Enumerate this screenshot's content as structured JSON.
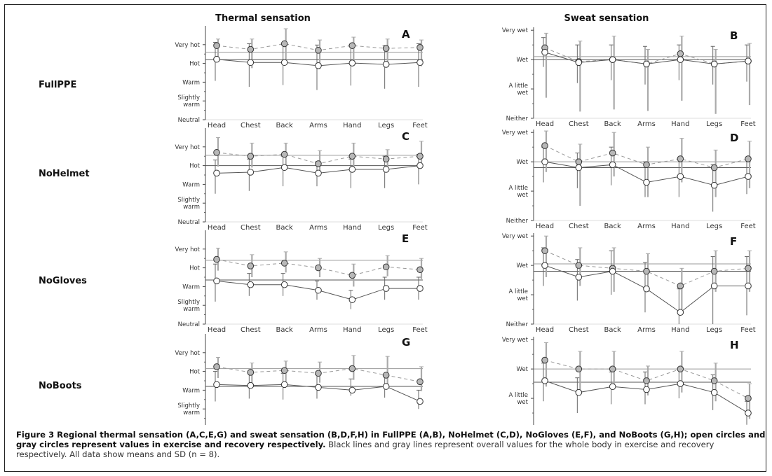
{
  "colors": {
    "exercise_marker": "#ffffff",
    "recovery_marker": "#b8b8b8",
    "exercise_line": "#555555",
    "recovery_line": "#999999",
    "errbar_exercise": "#666666",
    "errbar_recovery": "#aaaaaa",
    "axis": "#444444"
  },
  "columns": [
    "Thermal sensation",
    "Sweat sensation"
  ],
  "conditions": [
    "FullPPE",
    "NoHelmet",
    "NoGloves",
    "NoBoots"
  ],
  "caption": {
    "bold": "Figure 3 Regional thermal sensation (A,C,E,G) and sweat sensation (B,D,F,H) in FullPPE (A,B), NoHelmet (C,D), NoGloves (E,F), and NoBoots (G,H); open circles and gray circles represent values in exercise and recovery respectively.",
    "rest": " Black lines and gray lines represent overall values for the whole body in exercise and recovery respectively. All data show means and SD (n = 8)."
  },
  "chart_data": [
    {
      "panel": "A",
      "type": "line",
      "condition": "FullPPE",
      "categories": [
        "Head",
        "Chest",
        "Back",
        "Arms",
        "Hand",
        "Legs",
        "Feet"
      ],
      "yticks": [
        "Neutral",
        "Slightly warm",
        "Warm",
        "Hot",
        "Very hot"
      ],
      "ylim": [
        0,
        5
      ],
      "series": [
        {
          "values": [
            3.22,
            3.05,
            3.05,
            2.88,
            3.02,
            2.95,
            3.05
          ],
          "sd_up": [
            0.9,
            1.0,
            1.0,
            1.1,
            0.95,
            1.0,
            1.0
          ],
          "sd_down": [
            1.15,
            1.3,
            1.2,
            1.3,
            1.2,
            1.3,
            1.3
          ]
        },
        {
          "values": [
            3.95,
            3.75,
            4.05,
            3.7,
            3.95,
            3.8,
            3.85
          ],
          "sd_up": [
            0.35,
            0.55,
            0.8,
            0.55,
            0.45,
            0.5,
            0.4
          ],
          "sd_down": [
            0.85,
            1.0,
            1.1,
            1.0,
            0.9,
            0.95,
            1.0
          ]
        }
      ],
      "overall": [
        3.2,
        3.6
      ]
    },
    {
      "panel": "B",
      "type": "line",
      "condition": "FullPPE",
      "categories": [
        "Head",
        "Chest",
        "Back",
        "Arms",
        "Hand",
        "Legs",
        "Feet"
      ],
      "yticks": [
        "Neither",
        "A little wet",
        "Wet",
        "Very wet"
      ],
      "ylim": [
        0,
        3.1
      ],
      "series": [
        {
          "values": [
            2.25,
            1.9,
            2.0,
            1.85,
            2.0,
            1.85,
            1.95
          ],
          "sd_up": [
            0.5,
            0.6,
            0.5,
            0.6,
            0.5,
            0.6,
            0.55
          ],
          "sd_down": [
            0.5,
            0.7,
            0.7,
            0.7,
            0.7,
            0.7,
            0.7
          ]
        },
        {
          "values": [
            2.4,
            1.93,
            2.0,
            1.85,
            2.2,
            1.85,
            1.95
          ],
          "sd_up": [
            0.5,
            0.7,
            0.8,
            0.5,
            0.6,
            0.5,
            0.6
          ],
          "sd_down": [
            1.7,
            1.7,
            1.7,
            1.6,
            1.6,
            1.7,
            1.5
          ]
        }
      ],
      "overall": [
        2.0,
        2.1
      ]
    },
    {
      "panel": "C",
      "type": "line",
      "condition": "NoHelmet",
      "categories": [
        "Head",
        "Chest",
        "Back",
        "Arms",
        "Hand",
        "Legs",
        "Feet"
      ],
      "yticks": [
        "Neutral",
        "Slightly warm",
        "Warm",
        "Hot",
        "Very hot"
      ],
      "ylim": [
        0,
        5
      ],
      "series": [
        {
          "values": [
            2.6,
            2.65,
            2.9,
            2.6,
            2.8,
            2.8,
            3.0
          ],
          "sd_up": [
            0.7,
            0.7,
            0.6,
            0.6,
            0.55,
            0.7,
            0.6
          ],
          "sd_down": [
            1.1,
            1.0,
            1.0,
            0.7,
            1.0,
            1.0,
            1.0
          ]
        },
        {
          "values": [
            3.7,
            3.5,
            3.6,
            3.1,
            3.5,
            3.35,
            3.5
          ],
          "sd_up": [
            0.8,
            0.7,
            0.6,
            0.7,
            0.7,
            0.5,
            0.8
          ],
          "sd_down": [
            0.75,
            0.6,
            0.6,
            0.5,
            0.7,
            0.5,
            0.5
          ]
        }
      ],
      "overall": [
        3.0,
        3.55
      ]
    },
    {
      "panel": "D",
      "type": "line",
      "condition": "NoHelmet",
      "categories": [
        "Head",
        "Chest",
        "Back",
        "Arms",
        "Hand",
        "Legs",
        "Feet"
      ],
      "yticks": [
        "Neither",
        "A little wet",
        "Wet",
        "Very wet"
      ],
      "ylim": [
        0,
        3.1
      ],
      "series": [
        {
          "values": [
            2.0,
            1.8,
            1.9,
            1.3,
            1.5,
            1.2,
            1.5
          ],
          "sd_up": [
            0.5,
            0.5,
            0.6,
            0.7,
            0.6,
            0.7,
            0.6
          ],
          "sd_down": [
            0.7,
            0.7,
            0.7,
            0.5,
            0.7,
            0.9,
            0.6
          ]
        },
        {
          "values": [
            2.55,
            2.0,
            2.3,
            1.9,
            2.1,
            1.8,
            2.1
          ],
          "sd_up": [
            0.5,
            0.6,
            0.7,
            0.6,
            0.7,
            0.6,
            0.6
          ],
          "sd_down": [
            0.9,
            1.5,
            0.8,
            1.1,
            0.8,
            1.0,
            1.0
          ]
        }
      ],
      "overall": [
        1.8,
        2.0
      ]
    },
    {
      "panel": "E",
      "type": "line",
      "condition": "NoGloves",
      "categories": [
        "Head",
        "Chest",
        "Back",
        "Arms",
        "Hand",
        "Legs",
        "Feet"
      ],
      "yticks": [
        "Neutral",
        "Slightly warm",
        "Warm",
        "Hot",
        "Very hot"
      ],
      "ylim": [
        0,
        5
      ],
      "series": [
        {
          "values": [
            2.3,
            2.1,
            2.1,
            1.8,
            1.3,
            1.9,
            1.9
          ],
          "sd_up": [
            0.9,
            0.6,
            0.6,
            0.5,
            0.5,
            0.6,
            0.6
          ],
          "sd_down": [
            1.1,
            0.6,
            0.6,
            0.5,
            0.5,
            0.6,
            0.6
          ]
        },
        {
          "values": [
            3.45,
            3.1,
            3.25,
            3.0,
            2.6,
            3.05,
            2.9
          ],
          "sd_up": [
            0.6,
            0.6,
            0.6,
            0.5,
            0.6,
            0.6,
            0.6
          ],
          "sd_down": [
            0.6,
            0.6,
            0.5,
            0.5,
            0.6,
            0.5,
            0.5
          ]
        }
      ],
      "overall": [
        2.35,
        3.4
      ]
    },
    {
      "panel": "F",
      "type": "line",
      "condition": "NoGloves",
      "categories": [
        "Head",
        "Chest",
        "Back",
        "Arms",
        "Hand",
        "Legs",
        "Feet"
      ],
      "yticks": [
        "Neither",
        "A little wet",
        "Wet",
        "Very wet"
      ],
      "ylim": [
        0,
        3.1
      ],
      "series": [
        {
          "values": [
            2.0,
            1.6,
            1.8,
            1.2,
            0.4,
            1.3,
            1.3
          ],
          "sd_up": [
            0.6,
            0.6,
            0.7,
            0.9,
            0.8,
            1.0,
            1.0
          ],
          "sd_down": [
            0.7,
            0.8,
            0.8,
            0.8,
            0.4,
            1.3,
            1.0
          ]
        },
        {
          "values": [
            2.5,
            2.0,
            1.9,
            1.8,
            1.3,
            1.8,
            1.9
          ],
          "sd_up": [
            0.5,
            0.6,
            0.7,
            0.6,
            0.6,
            0.7,
            0.6
          ],
          "sd_down": [
            0.9,
            0.7,
            0.8,
            0.7,
            0.8,
            0.7,
            0.8
          ]
        }
      ],
      "overall": [
        1.8,
        2.05
      ]
    },
    {
      "panel": "G",
      "type": "line",
      "condition": "NoBoots",
      "categories": [
        "Head",
        "Chest",
        "Back",
        "Arms",
        "Hand",
        "Legs",
        "Feet"
      ],
      "yticks": [
        "Neutral",
        "Slightly warm",
        "Warm",
        "Hot",
        "Very hot"
      ],
      "ylim": [
        0,
        5
      ],
      "series": [
        {
          "values": [
            2.3,
            2.25,
            2.3,
            2.15,
            2.0,
            2.2,
            1.4
          ],
          "sd_up": [
            0.7,
            0.7,
            0.6,
            0.7,
            0.6,
            0.6,
            0.6
          ],
          "sd_down": [
            0.9,
            0.7,
            0.8,
            0.6,
            0.3,
            0.6,
            0.4
          ]
        },
        {
          "values": [
            3.25,
            2.95,
            3.05,
            2.9,
            3.15,
            2.8,
            2.45
          ],
          "sd_up": [
            0.5,
            0.5,
            0.5,
            0.6,
            0.7,
            1.0,
            0.8
          ],
          "sd_down": [
            0.6,
            0.6,
            0.6,
            0.5,
            0.6,
            0.6,
            0.5
          ]
        }
      ],
      "overall": [
        2.2,
        3.15
      ]
    },
    {
      "panel": "H",
      "type": "line",
      "condition": "NoBoots",
      "categories": [
        "Head",
        "Chest",
        "Back",
        "Arms",
        "Hand",
        "Legs",
        "Feet"
      ],
      "yticks": [
        "Neither",
        "A little wet",
        "Wet",
        "Very wet"
      ],
      "ylim": [
        0,
        3.1
      ],
      "series": [
        {
          "values": [
            1.6,
            1.2,
            1.4,
            1.3,
            1.5,
            1.2,
            0.5
          ],
          "sd_up": [
            0.6,
            0.5,
            0.5,
            0.6,
            0.5,
            0.6,
            0.4
          ],
          "sd_down": [
            0.7,
            0.7,
            0.6,
            0.5,
            0.5,
            0.6,
            0.4
          ]
        },
        {
          "values": [
            2.3,
            2.0,
            2.0,
            1.6,
            2.0,
            1.6,
            1.0
          ],
          "sd_up": [
            0.6,
            0.6,
            0.6,
            0.5,
            0.6,
            0.6,
            0.5
          ],
          "sd_down": [
            0.9,
            0.7,
            0.7,
            0.5,
            0.8,
            0.7,
            0.7
          ]
        }
      ],
      "overall": [
        1.55,
        2.0
      ]
    }
  ]
}
